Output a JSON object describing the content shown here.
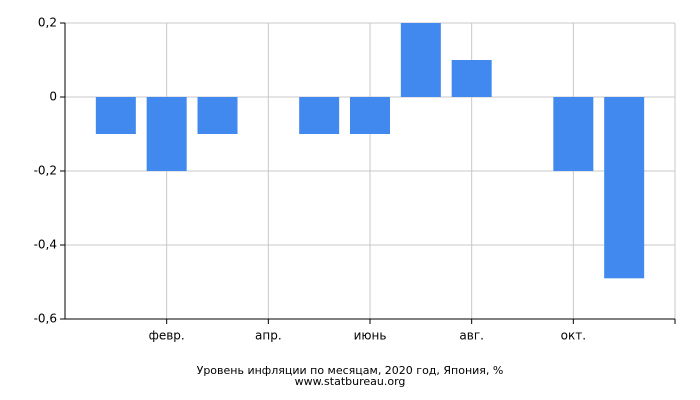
{
  "chart_data": {
    "type": "bar",
    "title": "Уровень инфляции по месяцам, 2020 год, Япония, %",
    "subtitle": "www.statbureau.org",
    "categories": [
      null,
      "февр.",
      null,
      "апр.",
      null,
      "июнь",
      null,
      "авг.",
      null,
      "окт.",
      null
    ],
    "values": [
      -0.1,
      -0.2,
      -0.1,
      0,
      -0.1,
      -0.1,
      0.2,
      0.1,
      0,
      -0.2,
      -0.49
    ],
    "color": "#4189ee",
    "ylim": [
      -0.6,
      0.2
    ],
    "yticks": [
      {
        "value": 0.2,
        "label": "0,2"
      },
      0,
      {
        "value": -0.2,
        "label": "-0,2"
      },
      {
        "value": -0.4,
        "label": "-0,4"
      },
      {
        "value": -0.6,
        "label": "-0,6"
      }
    ],
    "grid": true
  }
}
